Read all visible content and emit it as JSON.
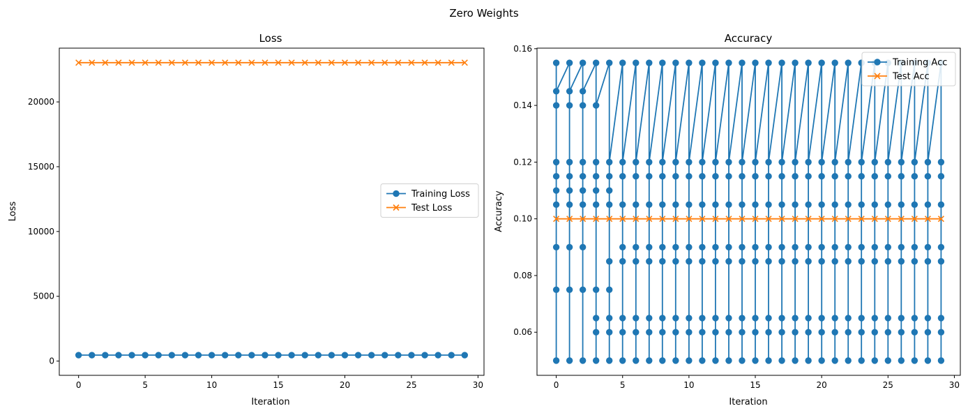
{
  "figure": {
    "suptitle": "Zero Weights"
  },
  "colors": {
    "training": "#1f77b4",
    "test": "#ff7f0e"
  },
  "chart_data": [
    {
      "type": "line",
      "title": "Loss",
      "xlabel": "Iteration",
      "ylabel": "Loss",
      "xlim": [
        -1.45,
        30.45
      ],
      "ylim": [
        -1100,
        24150
      ],
      "xticks": [
        0,
        5,
        10,
        15,
        20,
        25,
        30
      ],
      "yticks": [
        0,
        5000,
        10000,
        15000,
        20000
      ],
      "legend_position": "center-right",
      "legend": [
        "Training Loss",
        "Test Loss"
      ],
      "series": [
        {
          "name": "Training Loss",
          "marker": "circle",
          "x": [
            0,
            1,
            2,
            3,
            4,
            5,
            6,
            7,
            8,
            9,
            10,
            11,
            12,
            13,
            14,
            15,
            16,
            17,
            18,
            19,
            20,
            21,
            22,
            23,
            24,
            25,
            26,
            27,
            28,
            29
          ],
          "y": [
            460,
            460,
            460,
            460,
            460,
            460,
            460,
            460,
            460,
            460,
            460,
            460,
            460,
            460,
            460,
            460,
            460,
            460,
            460,
            460,
            460,
            460,
            460,
            460,
            460,
            460,
            460,
            460,
            460,
            460
          ]
        },
        {
          "name": "Test Loss",
          "marker": "x",
          "x": [
            0,
            1,
            2,
            3,
            4,
            5,
            6,
            7,
            8,
            9,
            10,
            11,
            12,
            13,
            14,
            15,
            16,
            17,
            18,
            19,
            20,
            21,
            22,
            23,
            24,
            25,
            26,
            27,
            28,
            29
          ],
          "y": [
            23030,
            23030,
            23030,
            23030,
            23030,
            23030,
            23030,
            23030,
            23030,
            23030,
            23030,
            23030,
            23030,
            23030,
            23030,
            23030,
            23030,
            23030,
            23030,
            23030,
            23030,
            23030,
            23030,
            23030,
            23030,
            23030,
            23030,
            23030,
            23030,
            23030
          ]
        }
      ]
    },
    {
      "type": "line",
      "title": "Accuracy",
      "xlabel": "Iteration",
      "ylabel": "Accuracy",
      "xlim": [
        -1.45,
        30.45
      ],
      "ylim": [
        0.0448,
        0.1602
      ],
      "xticks": [
        0,
        5,
        10,
        15,
        20,
        25,
        30
      ],
      "yticks": [
        0.06,
        0.08,
        0.1,
        0.12,
        0.14,
        0.16
      ],
      "ytick_labels": [
        "0.06",
        "0.08",
        "0.10",
        "0.12",
        "0.14",
        "0.16"
      ],
      "legend_position": "top-right",
      "legend": [
        "Training Acc",
        "Test Acc"
      ],
      "series": [
        {
          "name": "Training Acc",
          "marker": "circle",
          "x": [
            0,
            1,
            2,
            3,
            4,
            5,
            6,
            7,
            8,
            9,
            10,
            11,
            12,
            13,
            14,
            15,
            16,
            17,
            18,
            19,
            20,
            21,
            22,
            23,
            24,
            25,
            26,
            27,
            28,
            29
          ],
          "values_per_iteration": [
            [
              0.155,
              0.05,
              0.075,
              0.09,
              0.105,
              0.11,
              0.115,
              0.12,
              0.14,
              0.145
            ],
            [
              0.155,
              0.05,
              0.075,
              0.09,
              0.105,
              0.11,
              0.115,
              0.12,
              0.14,
              0.145
            ],
            [
              0.155,
              0.05,
              0.075,
              0.09,
              0.105,
              0.11,
              0.115,
              0.12,
              0.14,
              0.145
            ],
            [
              0.155,
              0.05,
              0.06,
              0.065,
              0.075,
              0.105,
              0.11,
              0.115,
              0.12,
              0.14
            ],
            [
              0.155,
              0.05,
              0.06,
              0.065,
              0.075,
              0.085,
              0.105,
              0.11,
              0.115,
              0.12
            ],
            [
              0.155,
              0.05,
              0.06,
              0.065,
              0.085,
              0.09,
              0.105,
              0.115,
              0.12
            ],
            [
              0.155,
              0.05,
              0.06,
              0.065,
              0.085,
              0.09,
              0.105,
              0.115,
              0.12
            ],
            [
              0.155,
              0.05,
              0.06,
              0.065,
              0.085,
              0.09,
              0.105,
              0.115,
              0.12
            ],
            [
              0.155,
              0.05,
              0.06,
              0.065,
              0.085,
              0.09,
              0.105,
              0.115,
              0.12
            ],
            [
              0.155,
              0.05,
              0.06,
              0.065,
              0.085,
              0.09,
              0.105,
              0.115,
              0.12
            ],
            [
              0.155,
              0.05,
              0.06,
              0.065,
              0.085,
              0.09,
              0.105,
              0.115,
              0.12
            ],
            [
              0.155,
              0.05,
              0.06,
              0.065,
              0.085,
              0.09,
              0.105,
              0.115,
              0.12
            ],
            [
              0.155,
              0.05,
              0.06,
              0.065,
              0.085,
              0.09,
              0.105,
              0.115,
              0.12
            ],
            [
              0.155,
              0.05,
              0.06,
              0.065,
              0.085,
              0.09,
              0.105,
              0.115,
              0.12
            ],
            [
              0.155,
              0.05,
              0.06,
              0.065,
              0.085,
              0.09,
              0.105,
              0.115,
              0.12
            ],
            [
              0.155,
              0.05,
              0.06,
              0.065,
              0.085,
              0.09,
              0.105,
              0.115,
              0.12
            ],
            [
              0.155,
              0.05,
              0.06,
              0.065,
              0.085,
              0.09,
              0.105,
              0.115,
              0.12
            ],
            [
              0.155,
              0.05,
              0.06,
              0.065,
              0.085,
              0.09,
              0.105,
              0.115,
              0.12
            ],
            [
              0.155,
              0.05,
              0.06,
              0.065,
              0.085,
              0.09,
              0.105,
              0.115,
              0.12
            ],
            [
              0.155,
              0.05,
              0.06,
              0.065,
              0.085,
              0.09,
              0.105,
              0.115,
              0.12
            ],
            [
              0.155,
              0.05,
              0.06,
              0.065,
              0.085,
              0.09,
              0.105,
              0.115,
              0.12
            ],
            [
              0.155,
              0.05,
              0.06,
              0.065,
              0.085,
              0.09,
              0.105,
              0.115,
              0.12
            ],
            [
              0.155,
              0.05,
              0.06,
              0.065,
              0.085,
              0.09,
              0.105,
              0.115,
              0.12
            ],
            [
              0.155,
              0.05,
              0.06,
              0.065,
              0.085,
              0.09,
              0.105,
              0.115,
              0.12
            ],
            [
              0.155,
              0.05,
              0.06,
              0.065,
              0.085,
              0.09,
              0.105,
              0.115,
              0.12
            ],
            [
              0.155,
              0.05,
              0.06,
              0.065,
              0.085,
              0.09,
              0.105,
              0.115,
              0.12
            ],
            [
              0.155,
              0.05,
              0.06,
              0.065,
              0.085,
              0.09,
              0.105,
              0.115,
              0.12
            ],
            [
              0.155,
              0.05,
              0.06,
              0.065,
              0.085,
              0.09,
              0.105,
              0.115,
              0.12
            ],
            [
              0.155,
              0.05,
              0.06,
              0.065,
              0.085,
              0.09,
              0.105,
              0.115,
              0.12
            ],
            [
              0.155,
              0.05,
              0.06,
              0.065,
              0.085,
              0.09,
              0.105,
              0.115,
              0.12
            ]
          ]
        },
        {
          "name": "Test Acc",
          "marker": "x",
          "x": [
            0,
            1,
            2,
            3,
            4,
            5,
            6,
            7,
            8,
            9,
            10,
            11,
            12,
            13,
            14,
            15,
            16,
            17,
            18,
            19,
            20,
            21,
            22,
            23,
            24,
            25,
            26,
            27,
            28,
            29
          ],
          "y": [
            0.1,
            0.1,
            0.1,
            0.1,
            0.1,
            0.1,
            0.1,
            0.1,
            0.1,
            0.1,
            0.1,
            0.1,
            0.1,
            0.1,
            0.1,
            0.1,
            0.1,
            0.1,
            0.1,
            0.1,
            0.1,
            0.1,
            0.1,
            0.1,
            0.1,
            0.1,
            0.1,
            0.1,
            0.1,
            0.1
          ]
        }
      ]
    }
  ]
}
